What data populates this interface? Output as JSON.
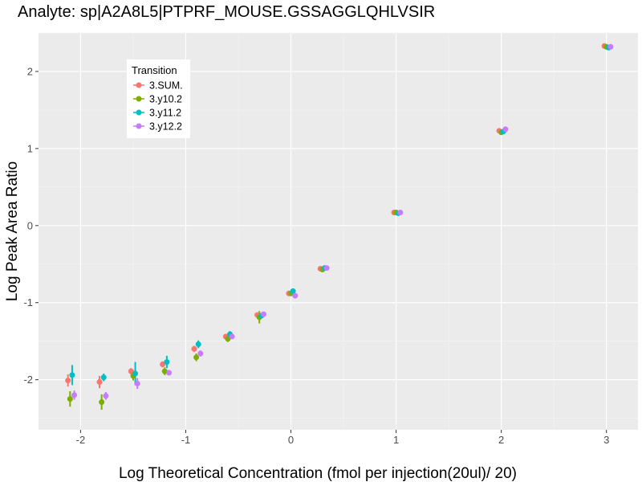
{
  "chart_data": {
    "type": "scatter",
    "title": "Analyte: sp|A2A8L5|PTPRF_MOUSE.GSSAGGLQHLVSIR",
    "xlabel": "Log Theoretical Concentration (fmol per injection(20ul)/ 20)",
    "ylabel": "Log Peak Area Ratio",
    "xlim": [
      -2.4,
      3.3
    ],
    "ylim": [
      -2.65,
      2.5
    ],
    "x_ticks": [
      -2,
      -1,
      0,
      1,
      2,
      3
    ],
    "x_tick_labels": [
      "-2",
      "-1",
      "0",
      "1",
      "2",
      "3"
    ],
    "y_ticks": [
      -2,
      -1,
      0,
      1,
      2
    ],
    "y_tick_labels": [
      "-2",
      "-1",
      "0",
      "1",
      "2"
    ],
    "grid": true,
    "legend": {
      "title": "Transition",
      "position": "top-left"
    },
    "series": [
      {
        "name": "3.SUM.",
        "color": "#F8766D",
        "points": [
          {
            "x": -2.12,
            "y": -2.01,
            "err": 0.08
          },
          {
            "x": -1.82,
            "y": -2.03,
            "err": 0.08
          },
          {
            "x": -1.52,
            "y": -1.89,
            "err": 0.04
          },
          {
            "x": -1.22,
            "y": -1.8,
            "err": 0.04
          },
          {
            "x": -0.92,
            "y": -1.6,
            "err": 0.04
          },
          {
            "x": -0.62,
            "y": -1.44,
            "err": 0.03
          },
          {
            "x": -0.32,
            "y": -1.16,
            "err": 0.02
          },
          {
            "x": -0.02,
            "y": -0.88,
            "err": 0.02
          },
          {
            "x": 0.28,
            "y": -0.56,
            "err": 0.02
          },
          {
            "x": 0.98,
            "y": 0.17,
            "err": 0.01
          },
          {
            "x": 1.98,
            "y": 1.23,
            "err": 0.01
          },
          {
            "x": 2.98,
            "y": 2.33,
            "err": 0.01
          }
        ]
      },
      {
        "name": "3.y10.2",
        "color": "#7CAE00",
        "points": [
          {
            "x": -2.1,
            "y": -2.25,
            "err": 0.1
          },
          {
            "x": -1.8,
            "y": -2.29,
            "err": 0.1
          },
          {
            "x": -1.5,
            "y": -1.95,
            "err": 0.06
          },
          {
            "x": -1.2,
            "y": -1.89,
            "err": 0.05
          },
          {
            "x": -0.9,
            "y": -1.71,
            "err": 0.05
          },
          {
            "x": -0.6,
            "y": -1.47,
            "err": 0.04
          },
          {
            "x": -0.3,
            "y": -1.19,
            "err": 0.08
          },
          {
            "x": 0.0,
            "y": -0.88,
            "err": 0.02
          },
          {
            "x": 0.3,
            "y": -0.57,
            "err": 0.02
          },
          {
            "x": 1.0,
            "y": 0.17,
            "err": 0.01
          },
          {
            "x": 2.0,
            "y": 1.21,
            "err": 0.01
          },
          {
            "x": 3.0,
            "y": 2.32,
            "err": 0.01
          }
        ]
      },
      {
        "name": "3.y11.2",
        "color": "#00BFC4",
        "points": [
          {
            "x": -2.08,
            "y": -1.94,
            "err": 0.13
          },
          {
            "x": -1.78,
            "y": -1.97,
            "err": 0.05
          },
          {
            "x": -1.48,
            "y": -1.92,
            "err": 0.15
          },
          {
            "x": -1.18,
            "y": -1.77,
            "err": 0.08
          },
          {
            "x": -0.88,
            "y": -1.54,
            "err": 0.05
          },
          {
            "x": -0.58,
            "y": -1.41,
            "err": 0.04
          },
          {
            "x": -0.28,
            "y": -1.17,
            "err": 0.02
          },
          {
            "x": 0.02,
            "y": -0.85,
            "err": 0.02
          },
          {
            "x": 0.32,
            "y": -0.55,
            "err": 0.02
          },
          {
            "x": 1.02,
            "y": 0.16,
            "err": 0.01
          },
          {
            "x": 2.02,
            "y": 1.22,
            "err": 0.01
          },
          {
            "x": 3.02,
            "y": 2.31,
            "err": 0.01
          }
        ]
      },
      {
        "name": "3.y12.2",
        "color": "#C77CFF",
        "points": [
          {
            "x": -2.06,
            "y": -2.2,
            "err": 0.06
          },
          {
            "x": -1.76,
            "y": -2.21,
            "err": 0.05
          },
          {
            "x": -1.46,
            "y": -2.05,
            "err": 0.07
          },
          {
            "x": -1.16,
            "y": -1.91,
            "err": 0.02
          },
          {
            "x": -0.86,
            "y": -1.66,
            "err": 0.04
          },
          {
            "x": -0.56,
            "y": -1.44,
            "err": 0.03
          },
          {
            "x": -0.26,
            "y": -1.15,
            "err": 0.02
          },
          {
            "x": 0.04,
            "y": -0.91,
            "err": 0.02
          },
          {
            "x": 0.34,
            "y": -0.55,
            "err": 0.01
          },
          {
            "x": 1.04,
            "y": 0.17,
            "err": 0.01
          },
          {
            "x": 2.04,
            "y": 1.25,
            "err": 0.01
          },
          {
            "x": 3.04,
            "y": 2.32,
            "err": 0.01
          }
        ]
      }
    ]
  }
}
